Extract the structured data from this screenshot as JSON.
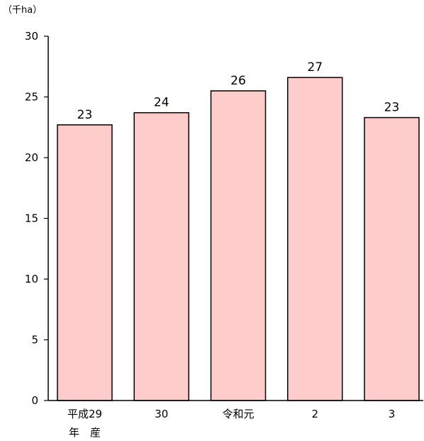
{
  "chart_data": {
    "type": "bar",
    "unit_label": "（千ha）",
    "categories": [
      [
        "平成29",
        "年　産"
      ],
      [
        "30"
      ],
      [
        "令和元"
      ],
      [
        "2"
      ],
      [
        "3"
      ]
    ],
    "values": [
      22.7,
      23.7,
      25.5,
      26.6,
      23.3
    ],
    "data_labels": [
      "23",
      "24",
      "26",
      "27",
      "23"
    ],
    "ylim": [
      0,
      30
    ],
    "yticks": [
      0,
      5,
      10,
      15,
      20,
      25,
      30
    ],
    "grid": false,
    "legend": "none",
    "colors": {
      "bar_fill": "#FFCCCC",
      "bar_stroke": "#000000",
      "axis": "#000000"
    }
  }
}
